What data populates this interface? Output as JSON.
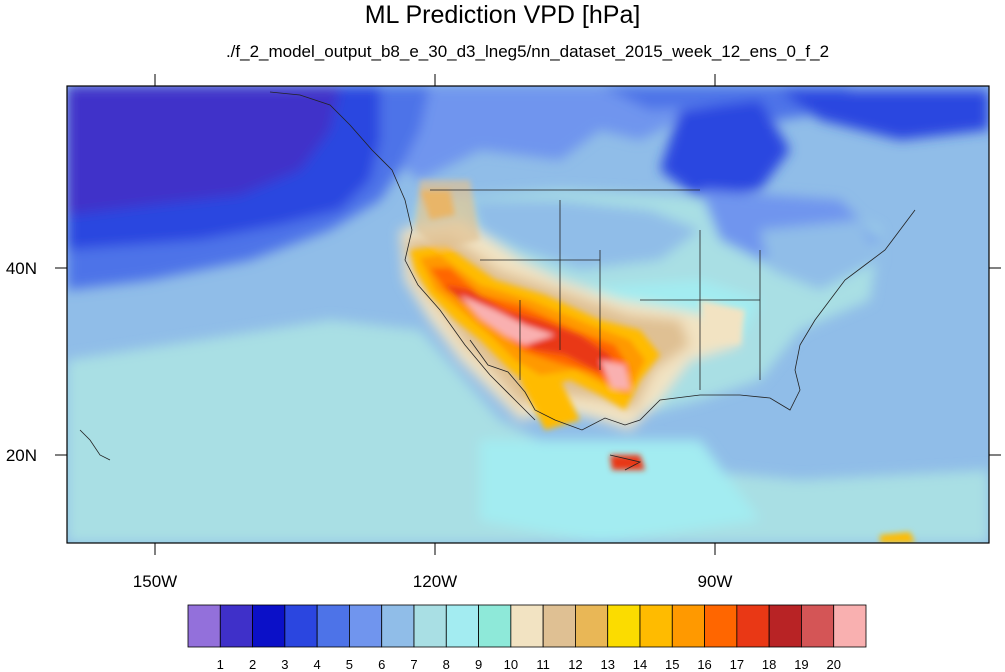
{
  "title": "ML Prediction VPD [hPa]",
  "subtitle": "./f_2_model_output_b8_e_30_d3_lneg5/nn_dataset_2015_week_12_ens_0_f_2",
  "map": {
    "region": "North America / Northeast Pacific",
    "projection": "cylindrical equidistant",
    "lon_range": [
      -160,
      -60
    ],
    "lat_range": [
      10,
      60
    ],
    "longitude_labels": [
      "150W",
      "120W",
      "90W"
    ],
    "latitude_labels": [
      "40N",
      "20N"
    ]
  },
  "colorbar": {
    "labels": [
      "1",
      "2",
      "3",
      "4",
      "5",
      "6",
      "7",
      "8",
      "9",
      "10",
      "11",
      "12",
      "13",
      "14",
      "15",
      "16",
      "17",
      "18",
      "19",
      "20"
    ],
    "colors": [
      "#9370db",
      "#3f30c9",
      "#0b10c8",
      "#2b46e0",
      "#4d73e8",
      "#7095ee",
      "#90bde8",
      "#a9dfe4",
      "#a3ecf1",
      "#8ee9d9",
      "#f2e3c2",
      "#dfc093",
      "#e9b756",
      "#fbdc00",
      "#ffbb00",
      "#ff9900",
      "#ff6600",
      "#e93815",
      "#b82325",
      "#d45556",
      "#f9b0b0"
    ]
  }
}
